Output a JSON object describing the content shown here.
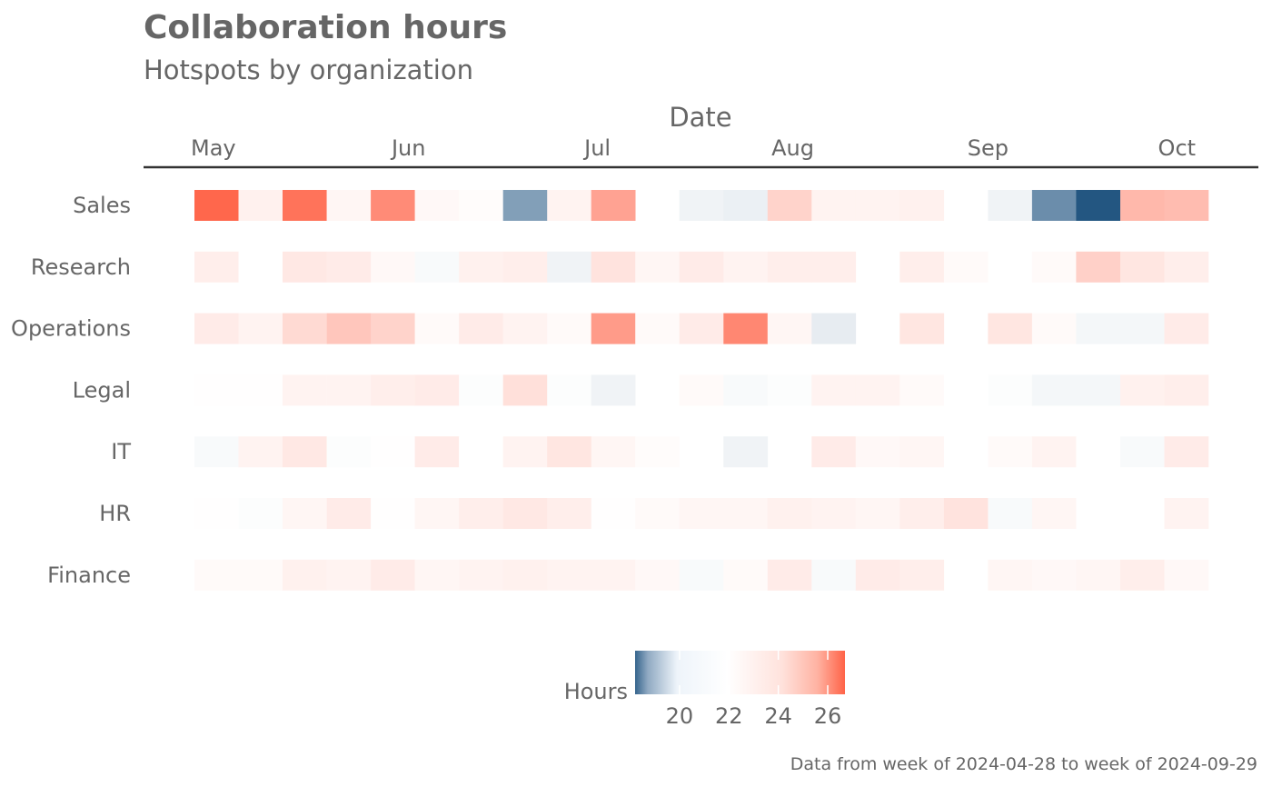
{
  "chart_data": {
    "type": "heatmap",
    "title": "Collaboration hours",
    "subtitle": "Hotspots by organization",
    "xlabel": "Date",
    "x_axis_position": "top",
    "x_ticks": [
      {
        "label": "May",
        "date": "2024-05-01"
      },
      {
        "label": "Jun",
        "date": "2024-06-01"
      },
      {
        "label": "Jul",
        "date": "2024-07-01"
      },
      {
        "label": "Aug",
        "date": "2024-08-01"
      },
      {
        "label": "Sep",
        "date": "2024-09-01"
      },
      {
        "label": "Oct",
        "date": "2024-10-01"
      }
    ],
    "x_range": [
      "2024-04-28",
      "2024-10-06"
    ],
    "weeks": [
      "2024-04-28",
      "2024-05-05",
      "2024-05-12",
      "2024-05-19",
      "2024-05-26",
      "2024-06-02",
      "2024-06-09",
      "2024-06-16",
      "2024-06-23",
      "2024-06-30",
      "2024-07-07",
      "2024-07-14",
      "2024-07-21",
      "2024-07-28",
      "2024-08-04",
      "2024-08-11",
      "2024-08-18",
      "2024-08-25",
      "2024-09-01",
      "2024-09-08",
      "2024-09-15",
      "2024-09-22",
      "2024-09-29"
    ],
    "rows": [
      "Sales",
      "Research",
      "Operations",
      "Legal",
      "IT",
      "HR",
      "Finance"
    ],
    "values": {
      "Sales": [
        26.6,
        22.7,
        26.3,
        22.5,
        25.7,
        22.4,
        22.2,
        19.5,
        22.6,
        25.1,
        null,
        21.6,
        21.5,
        23.7,
        22.6,
        22.6,
        22.7,
        null,
        21.6,
        19.1,
        17.9,
        24.5,
        24.4
      ],
      "Research": [
        22.8,
        22.0,
        23.0,
        22.9,
        22.4,
        21.8,
        22.7,
        22.8,
        21.6,
        23.2,
        22.5,
        22.9,
        22.6,
        22.8,
        22.8,
        null,
        22.8,
        22.3,
        22.0,
        22.3,
        23.8,
        23.1,
        22.8
      ],
      "Operations": [
        22.9,
        22.6,
        23.5,
        24.1,
        23.7,
        22.3,
        22.9,
        22.6,
        22.3,
        25.3,
        22.3,
        22.9,
        25.8,
        22.5,
        21.4,
        null,
        23.1,
        null,
        23.1,
        22.3,
        21.7,
        21.7,
        22.9
      ],
      "Legal": [
        22.1,
        22.1,
        22.6,
        22.6,
        22.8,
        22.9,
        21.9,
        23.3,
        21.9,
        21.6,
        null,
        22.3,
        21.8,
        21.9,
        22.6,
        22.6,
        22.3,
        22.0,
        21.9,
        21.7,
        21.7,
        22.7,
        22.8
      ],
      "IT": [
        21.8,
        22.6,
        23.0,
        21.9,
        22.1,
        22.9,
        22.0,
        22.6,
        23.1,
        22.5,
        22.2,
        null,
        21.6,
        null,
        22.9,
        22.4,
        22.5,
        22.0,
        22.3,
        22.6,
        22.0,
        21.8,
        22.9
      ],
      "HR": [
        22.1,
        21.9,
        22.5,
        22.9,
        22.1,
        22.5,
        22.8,
        23.0,
        22.8,
        22.1,
        22.3,
        22.5,
        22.5,
        22.7,
        22.6,
        22.5,
        22.8,
        23.2,
        21.8,
        22.5,
        22.0,
        22.0,
        22.6
      ],
      "Finance": [
        22.3,
        22.3,
        22.7,
        22.6,
        22.9,
        22.5,
        22.6,
        22.7,
        22.6,
        22.6,
        22.4,
        21.8,
        22.3,
        22.9,
        21.8,
        22.9,
        22.8,
        null,
        22.5,
        22.4,
        22.5,
        22.8,
        22.4
      ]
    },
    "legend": {
      "title": "Hours",
      "placement": "bottom",
      "ticks": [
        20,
        22,
        24,
        26
      ],
      "range": [
        18.2,
        26.7
      ],
      "midpoint": 22,
      "low_color": "#35648c",
      "mid_color": "#ffffff",
      "high_color": "#ff6347"
    },
    "grid": false
  },
  "caption": "Data from week of 2024-04-28 to week of 2024-09-29"
}
